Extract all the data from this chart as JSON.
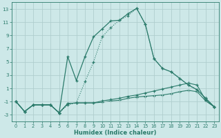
{
  "x": [
    0,
    1,
    2,
    3,
    4,
    5,
    6,
    7,
    8,
    9,
    10,
    11,
    12,
    13,
    14,
    15,
    16,
    17,
    18,
    19,
    20,
    21,
    22,
    23
  ],
  "line_dotted": [
    -1,
    -2.5,
    -1.5,
    -1.5,
    -1.5,
    -2.7,
    -1.5,
    -1.2,
    2,
    5,
    8.8,
    10.2,
    11.3,
    12.0,
    13.1,
    10.7,
    5.5,
    4.0,
    3.5,
    2.5,
    1.5,
    0.8,
    -0.5,
    -1.8
  ],
  "line_solid": [
    -1,
    -2.5,
    -1.5,
    -1.5,
    -1.5,
    -2.7,
    5.8,
    2.2,
    5.8,
    8.8,
    10.0,
    11.2,
    11.3,
    12.3,
    13.1,
    10.7,
    5.5,
    4.0,
    3.5,
    2.5,
    1.5,
    0.8,
    -0.5,
    -1.8
  ],
  "line_flat1": [
    -1,
    -2.5,
    -1.5,
    -1.5,
    -1.5,
    -2.7,
    -1.3,
    -1.2,
    -1.2,
    -1.2,
    -0.9,
    -0.7,
    -0.5,
    -0.2,
    0.0,
    0.3,
    0.6,
    0.9,
    1.2,
    1.5,
    1.8,
    1.5,
    -0.8,
    -1.8
  ],
  "line_flat2": [
    -1,
    -2.5,
    -1.5,
    -1.5,
    -1.5,
    -2.7,
    -1.3,
    -1.2,
    -1.2,
    -1.2,
    -1.1,
    -0.9,
    -0.8,
    -0.5,
    -0.3,
    -0.2,
    -0.1,
    0.0,
    0.2,
    0.5,
    0.7,
    0.5,
    -0.9,
    -1.8
  ],
  "bg_color": "#cde8e8",
  "grid_color": "#b0cece",
  "line_color": "#2a7a6a",
  "xlabel": "Humidex (Indice chaleur)",
  "ylim": [
    -4,
    14
  ],
  "yticks": [
    -3,
    -1,
    1,
    3,
    5,
    7,
    9,
    11,
    13
  ],
  "xlim": [
    -0.5,
    23.5
  ],
  "xticks": [
    0,
    1,
    2,
    3,
    4,
    5,
    6,
    7,
    8,
    9,
    10,
    11,
    12,
    13,
    14,
    15,
    16,
    17,
    18,
    19,
    20,
    21,
    22,
    23
  ]
}
